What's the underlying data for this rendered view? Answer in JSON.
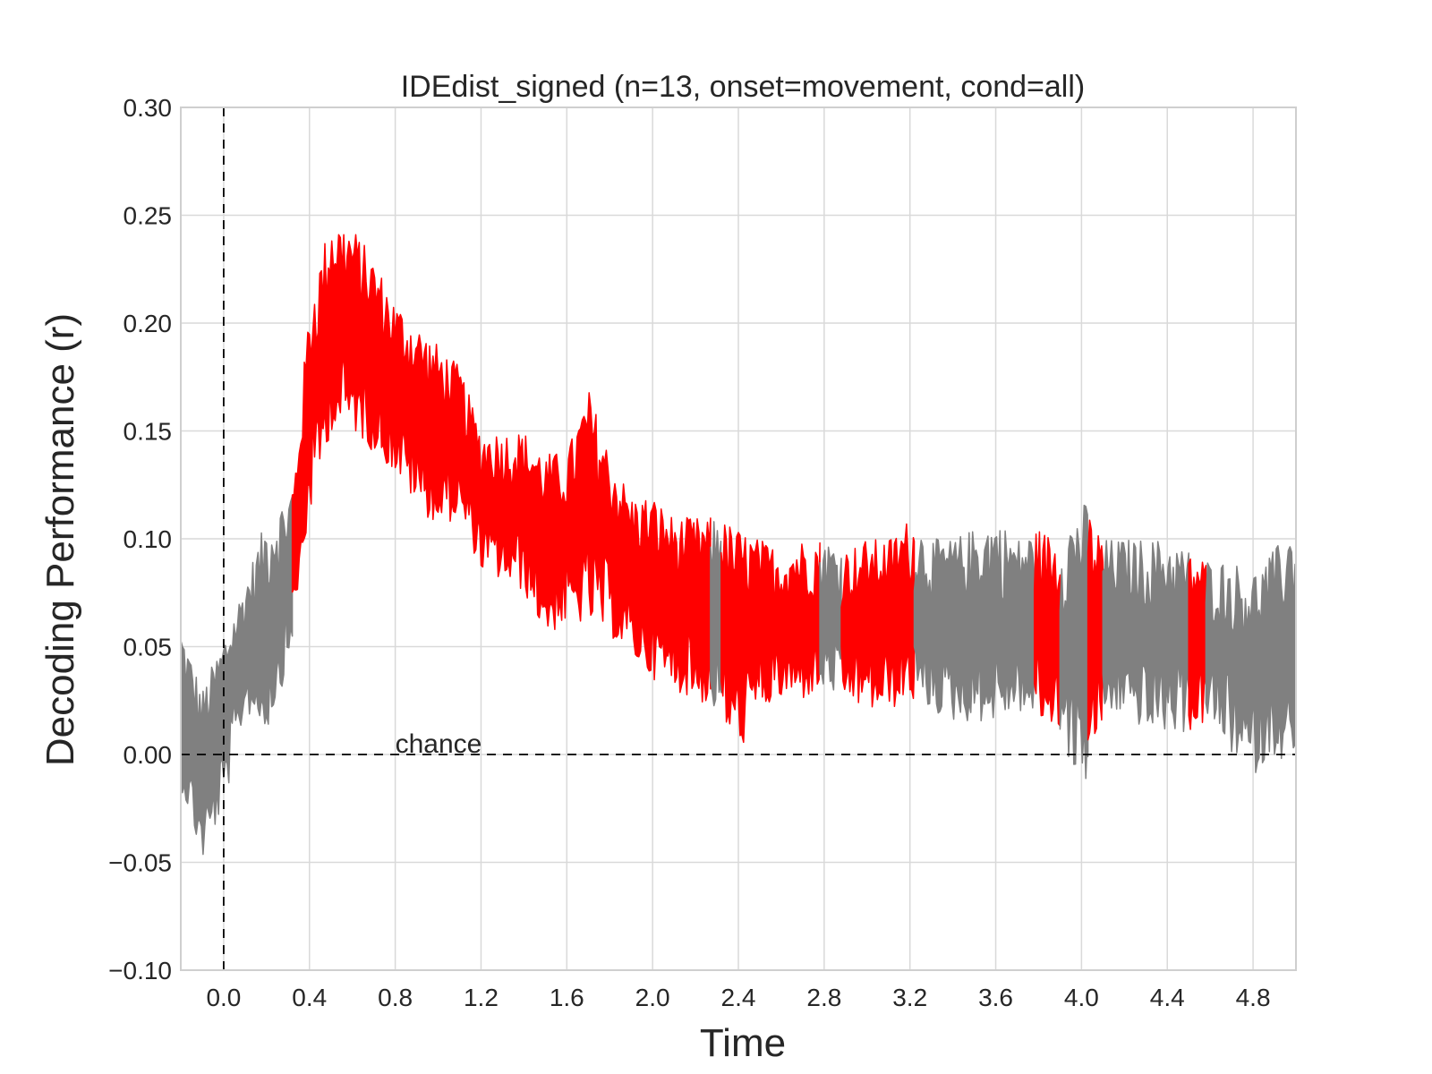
{
  "chart_data": {
    "type": "line",
    "title": "IDEdist_signed (n=13, onset=movement, cond=all)",
    "xlabel": "Time",
    "ylabel": "Decoding Performance (r)",
    "xlim": [
      -0.2,
      5.0
    ],
    "ylim": [
      -0.1,
      0.3
    ],
    "xticks": [
      "0.0",
      "0.4",
      "0.8",
      "1.2",
      "1.6",
      "2.0",
      "2.4",
      "2.8",
      "3.2",
      "3.6",
      "4.0",
      "4.4",
      "4.8"
    ],
    "xtick_values": [
      0.0,
      0.4,
      0.8,
      1.2,
      1.6,
      2.0,
      2.4,
      2.8,
      3.2,
      3.6,
      4.0,
      4.4,
      4.8
    ],
    "yticks": [
      "−0.10",
      "−0.05",
      "0.00",
      "0.05",
      "0.10",
      "0.15",
      "0.20",
      "0.25",
      "0.30"
    ],
    "ytick_values": [
      -0.1,
      -0.05,
      0.0,
      0.05,
      0.1,
      0.15,
      0.2,
      0.25,
      0.3
    ],
    "grid": true,
    "annotations": [
      {
        "text": "chance",
        "x": 0.8,
        "y": 0.0
      }
    ],
    "reference_lines": {
      "horizontal_y": 0.0,
      "vertical_x": 0.0
    },
    "colors": {
      "non_significant": "#808080",
      "significant": "#ff0000"
    },
    "series": [
      {
        "x": [
          -0.2,
          -0.1,
          0.0,
          0.1,
          0.2,
          0.3,
          0.33,
          0.4,
          0.5,
          0.6,
          0.7,
          0.8,
          0.9,
          1.0,
          1.1,
          1.2,
          1.3,
          1.4,
          1.5,
          1.6,
          1.7,
          1.8,
          1.9,
          2.0,
          2.1,
          2.2,
          2.3,
          2.4,
          2.5,
          2.6,
          2.7,
          2.8,
          2.9,
          3.0,
          3.1,
          3.2,
          3.3,
          3.4,
          3.5,
          3.6,
          3.7,
          3.8,
          3.9,
          4.0,
          4.1,
          4.2,
          4.3,
          4.4,
          4.5,
          4.6,
          4.7,
          4.8,
          4.9,
          5.0
        ],
        "upper": [
          0.06,
          0.03,
          0.055,
          0.08,
          0.11,
          0.12,
          0.13,
          0.21,
          0.25,
          0.245,
          0.23,
          0.21,
          0.2,
          0.19,
          0.18,
          0.15,
          0.15,
          0.15,
          0.14,
          0.14,
          0.17,
          0.14,
          0.12,
          0.12,
          0.11,
          0.11,
          0.11,
          0.105,
          0.1,
          0.095,
          0.1,
          0.1,
          0.095,
          0.1,
          0.1,
          0.11,
          0.1,
          0.1,
          0.105,
          0.11,
          0.1,
          0.105,
          0.1,
          0.12,
          0.1,
          0.1,
          0.1,
          0.1,
          0.095,
          0.09,
          0.09,
          0.085,
          0.095,
          0.11
        ],
        "lower": [
          -0.015,
          -0.05,
          -0.025,
          0.02,
          0.01,
          0.04,
          0.06,
          0.11,
          0.15,
          0.15,
          0.14,
          0.13,
          0.115,
          0.105,
          0.11,
          0.085,
          0.08,
          0.075,
          0.055,
          0.06,
          0.06,
          0.055,
          0.045,
          0.035,
          0.03,
          0.025,
          0.02,
          0.0,
          0.02,
          0.025,
          0.025,
          0.03,
          0.025,
          0.02,
          0.02,
          0.025,
          0.02,
          0.015,
          0.015,
          0.015,
          0.02,
          0.015,
          0.01,
          -0.02,
          0.015,
          0.02,
          0.01,
          0.01,
          0.01,
          0.015,
          0.0,
          -0.01,
          0.0,
          -0.01
        ],
        "segments": [
          {
            "x0": -0.2,
            "x1": 0.32,
            "status": "non_significant"
          },
          {
            "x0": 0.32,
            "x1": 2.27,
            "status": "significant"
          },
          {
            "x0": 2.27,
            "x1": 2.32,
            "status": "non_significant"
          },
          {
            "x0": 2.32,
            "x1": 2.78,
            "status": "significant"
          },
          {
            "x0": 2.78,
            "x1": 2.88,
            "status": "non_significant"
          },
          {
            "x0": 2.88,
            "x1": 3.22,
            "status": "significant"
          },
          {
            "x0": 3.22,
            "x1": 3.78,
            "status": "non_significant"
          },
          {
            "x0": 3.78,
            "x1": 3.9,
            "status": "significant"
          },
          {
            "x0": 3.9,
            "x1": 4.03,
            "status": "non_significant"
          },
          {
            "x0": 4.03,
            "x1": 4.1,
            "status": "significant"
          },
          {
            "x0": 4.1,
            "x1": 4.5,
            "status": "non_significant"
          },
          {
            "x0": 4.5,
            "x1": 4.58,
            "status": "significant"
          },
          {
            "x0": 4.58,
            "x1": 5.0,
            "status": "non_significant"
          }
        ]
      }
    ]
  }
}
